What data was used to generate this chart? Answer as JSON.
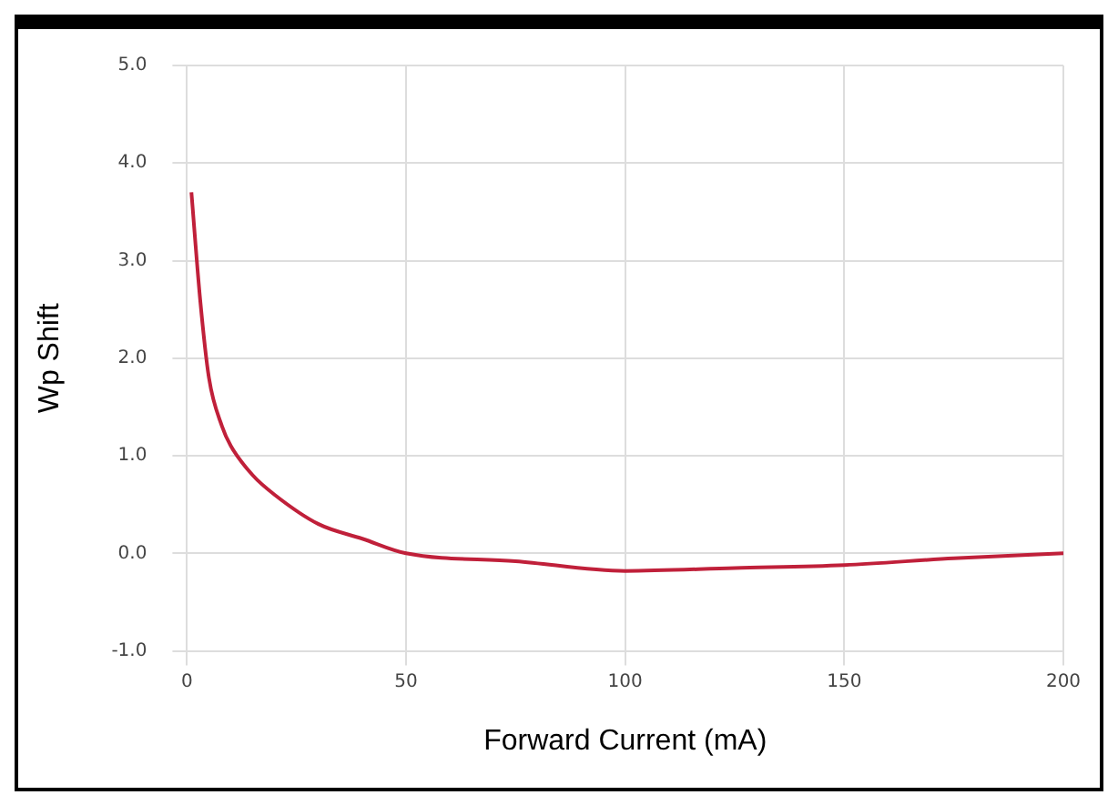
{
  "chart_data": {
    "type": "line",
    "xlabel": "Forward Current (mA)",
    "ylabel": "Wp Shift",
    "series": [
      {
        "color": "#c0203a",
        "x": [
          1,
          3,
          5,
          8,
          10,
          15,
          20,
          30,
          40,
          50,
          75,
          100,
          125,
          150,
          175,
          200
        ],
        "values": [
          3.7,
          2.6,
          1.8,
          1.3,
          1.1,
          0.8,
          0.6,
          0.3,
          0.15,
          0.0,
          -0.08,
          -0.18,
          -0.15,
          -0.12,
          -0.05,
          0.0
        ]
      }
    ],
    "xlim": [
      0,
      200
    ],
    "xticks": [
      0,
      50,
      100,
      150,
      200
    ],
    "ylim": [
      -1,
      5
    ],
    "yticks": [
      {
        "value": -1,
        "label": "-1.0"
      },
      {
        "value": 0,
        "label": "0.0"
      },
      {
        "value": 1,
        "label": "1.0"
      },
      {
        "value": 2,
        "label": "2.0"
      },
      {
        "value": 3,
        "label": "3.0"
      },
      {
        "value": 4,
        "label": "4.0"
      },
      {
        "value": 5,
        "label": "5.0"
      }
    ],
    "grid": true,
    "legend": false,
    "marker": "none",
    "line_style": "solid"
  }
}
